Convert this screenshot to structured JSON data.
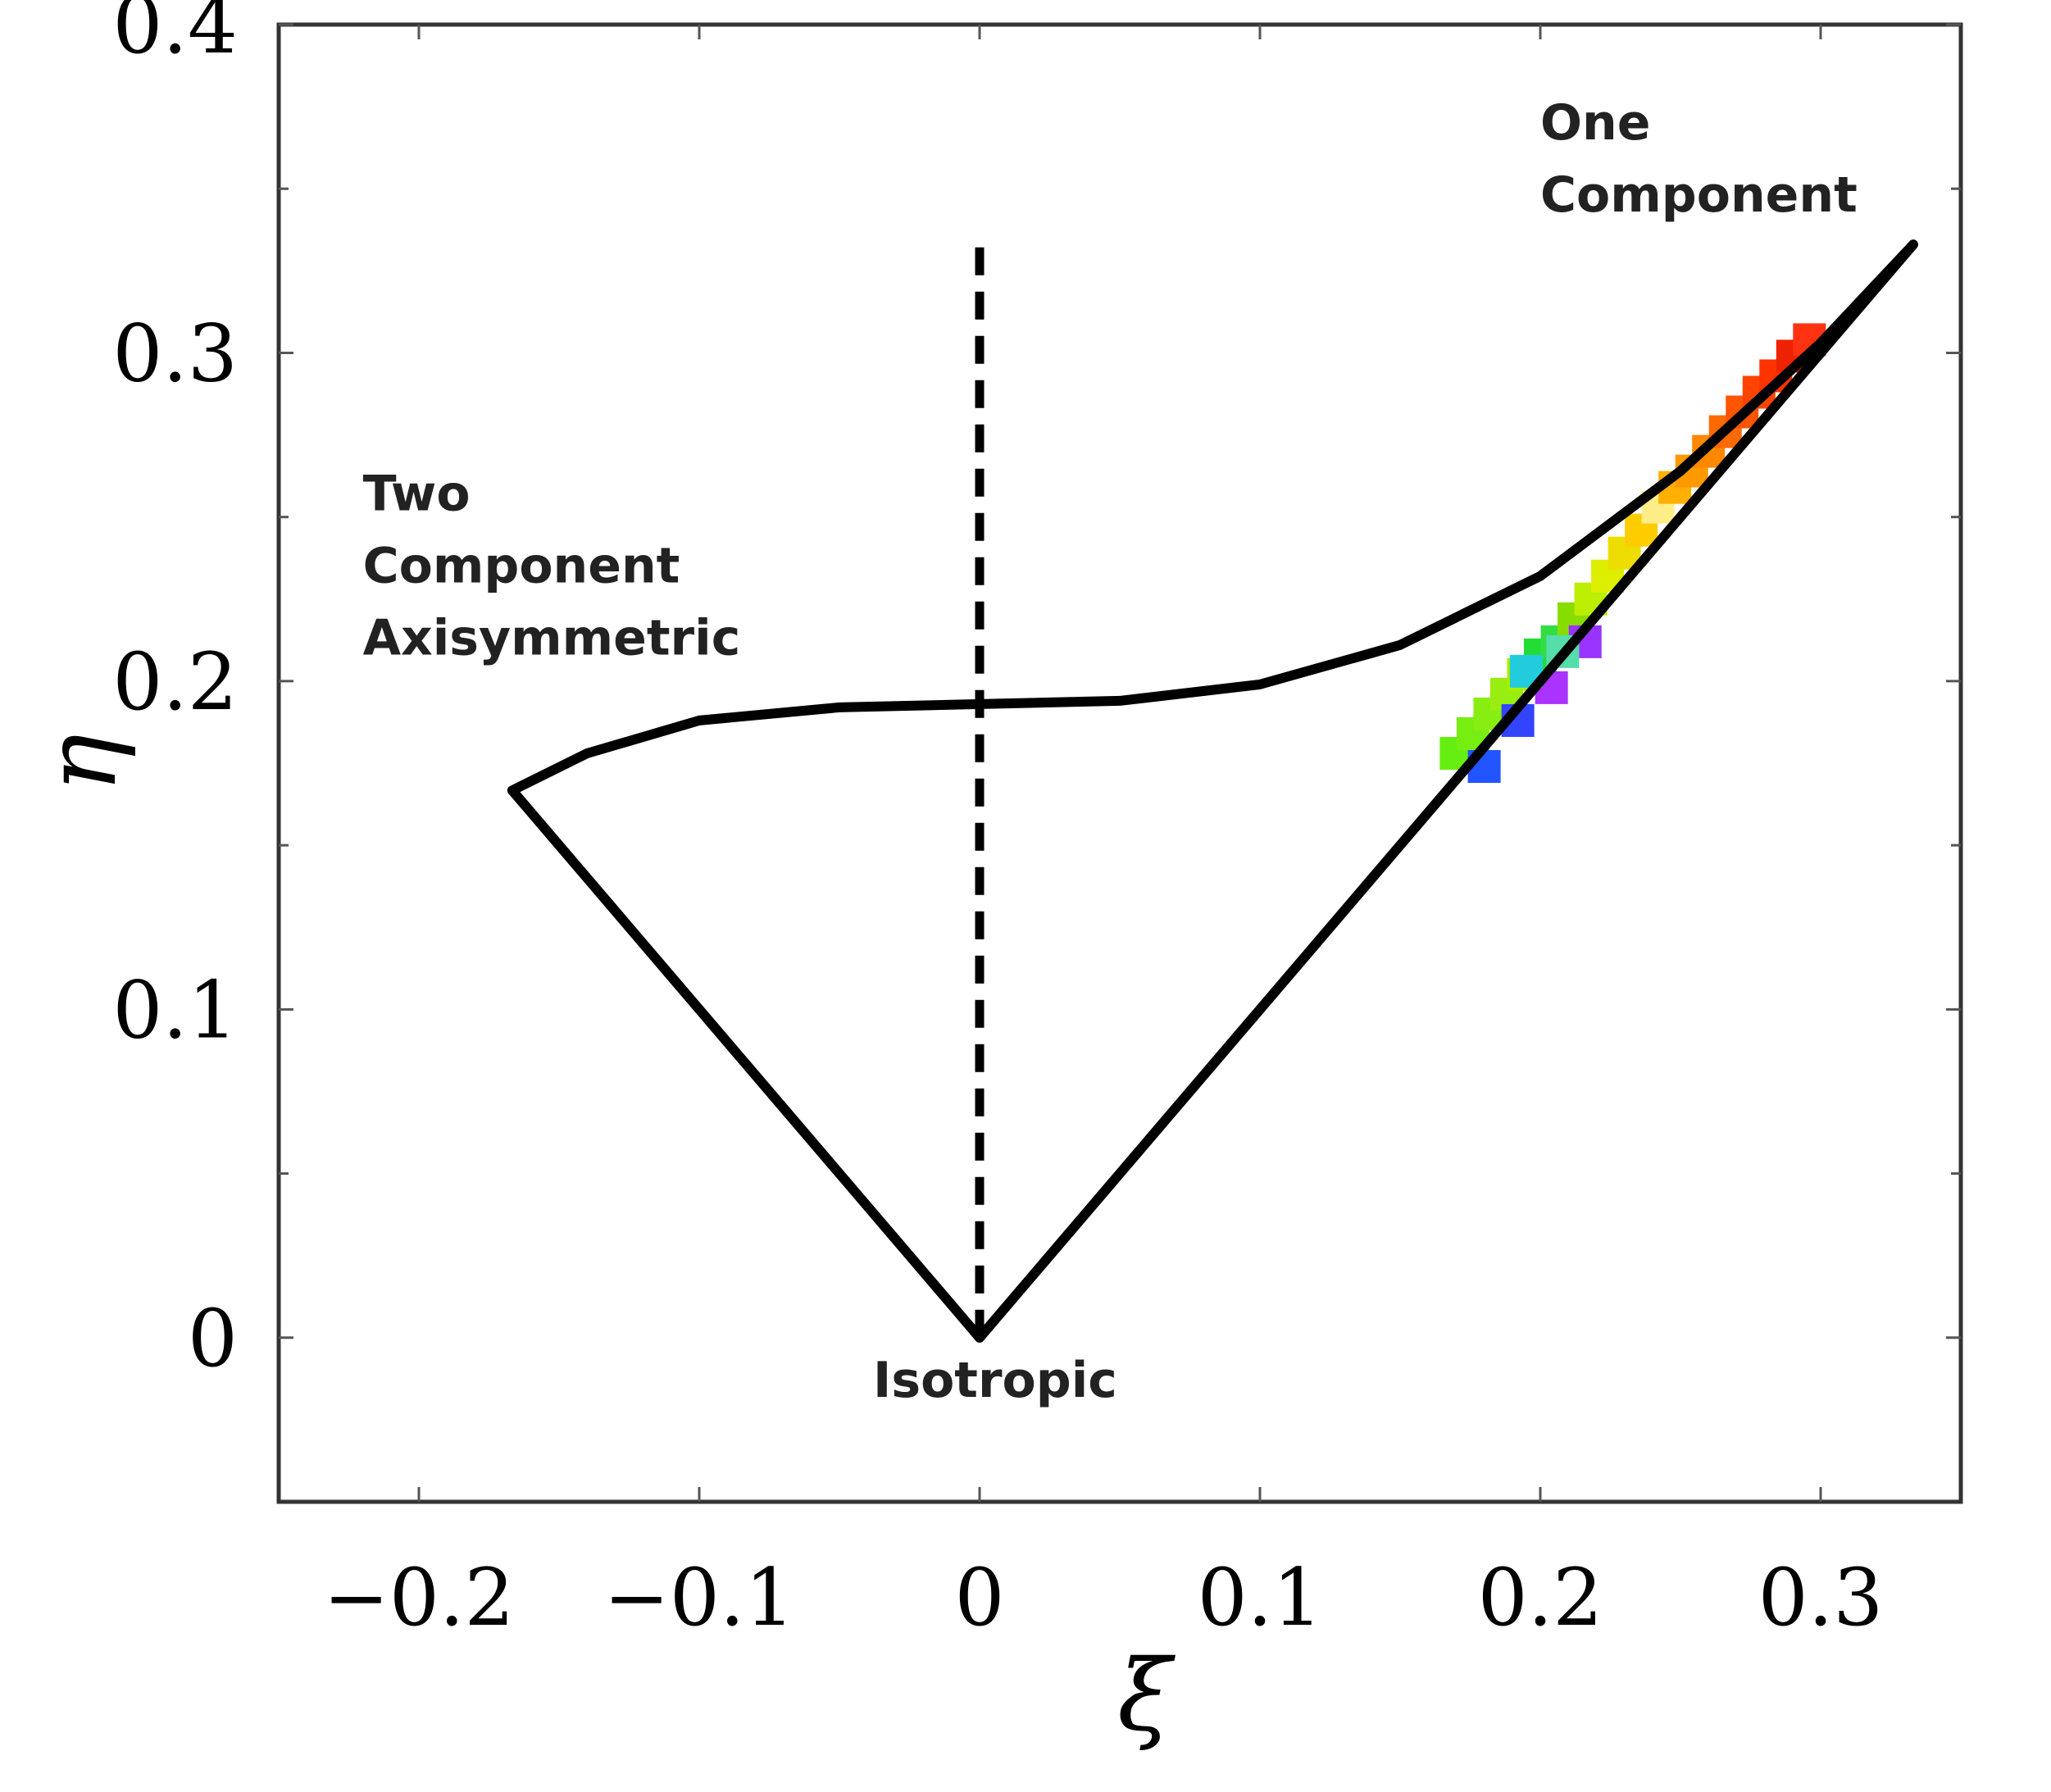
{
  "chart_data": {
    "type": "line",
    "title": "",
    "xlabel": "ξ",
    "ylabel": "η",
    "xlim": [
      -0.25,
      0.35
    ],
    "ylim": [
      -0.05,
      0.4
    ],
    "xticks": [
      -0.2,
      -0.1,
      0,
      0.1,
      0.2,
      0.3
    ],
    "xtick_labels": [
      "−0.2",
      "−0.1",
      "0",
      "0.1",
      "0.2",
      "0.3"
    ],
    "yticks": [
      0,
      0.1,
      0.2,
      0.3,
      0.4
    ],
    "ytick_labels": [
      "0",
      "0.1",
      "0.2",
      "0.3",
      "0.4"
    ],
    "minor_yticks": [
      0.05,
      0.15,
      0.25,
      0.35
    ],
    "grid": false,
    "colors": {
      "boundary": "#000000"
    },
    "series": [
      {
        "role": "left-boundary",
        "style": "solid",
        "x": [
          0,
          -0.1667
        ],
        "y": [
          0,
          0.1667
        ]
      },
      {
        "role": "right-boundary",
        "style": "solid",
        "x": [
          0,
          0.333
        ],
        "y": [
          0,
          0.333
        ]
      },
      {
        "role": "upper-boundary",
        "style": "solid",
        "x": [
          -0.1667,
          -0.14,
          -0.1,
          -0.05,
          0,
          0.05,
          0.1,
          0.15,
          0.2,
          0.25,
          0.3,
          0.333
        ],
        "y": [
          0.1667,
          0.178,
          0.188,
          0.192,
          0.193,
          0.194,
          0.199,
          0.211,
          0.232,
          0.264,
          0.303,
          0.333
        ]
      },
      {
        "role": "axisymmetric-divider",
        "style": "dashed",
        "x": [
          0,
          0
        ],
        "y": [
          0,
          0.333
        ]
      }
    ],
    "scatter_points": {
      "x": [
        0.17,
        0.176,
        0.182,
        0.188,
        0.194,
        0.2,
        0.206,
        0.212,
        0.218,
        0.224,
        0.23,
        0.236,
        0.242,
        0.248,
        0.254,
        0.26,
        0.266,
        0.272,
        0.278,
        0.284,
        0.29,
        0.296,
        0.18,
        0.192,
        0.204,
        0.216,
        0.195,
        0.208
      ],
      "y": [
        0.178,
        0.184,
        0.19,
        0.196,
        0.202,
        0.208,
        0.212,
        0.219,
        0.225,
        0.232,
        0.239,
        0.246,
        0.253,
        0.259,
        0.264,
        0.27,
        0.276,
        0.282,
        0.288,
        0.293,
        0.299,
        0.304,
        0.174,
        0.188,
        0.198,
        0.212,
        0.203,
        0.209
      ],
      "colors": [
        "#66ee11",
        "#77ee11",
        "#88ee11",
        "#99ee11",
        "#aaee00",
        "#22dd33",
        "#33dd44",
        "#88dd00",
        "#bbee00",
        "#ddee00",
        "#eedd00",
        "#ffcc00",
        "#ffee88",
        "#ffb000",
        "#ff9900",
        "#ff8800",
        "#ff6a00",
        "#ff5500",
        "#ff4400",
        "#ff3300",
        "#ee2200",
        "#ff3311",
        "#2255ff",
        "#3344ff",
        "#aa33ff",
        "#9933ff",
        "#22ccdd",
        "#55ddaa"
      ]
    },
    "annotations": [
      {
        "lines": [
          "One",
          "Component"
        ],
        "x": 0.2,
        "y": 0.365
      },
      {
        "lines": [
          "Two",
          "Component",
          "Axisymmetric"
        ],
        "x": -0.22,
        "y": 0.252
      },
      {
        "lines": [
          "Isotropic"
        ],
        "x": -0.038,
        "y": -0.018
      }
    ]
  }
}
